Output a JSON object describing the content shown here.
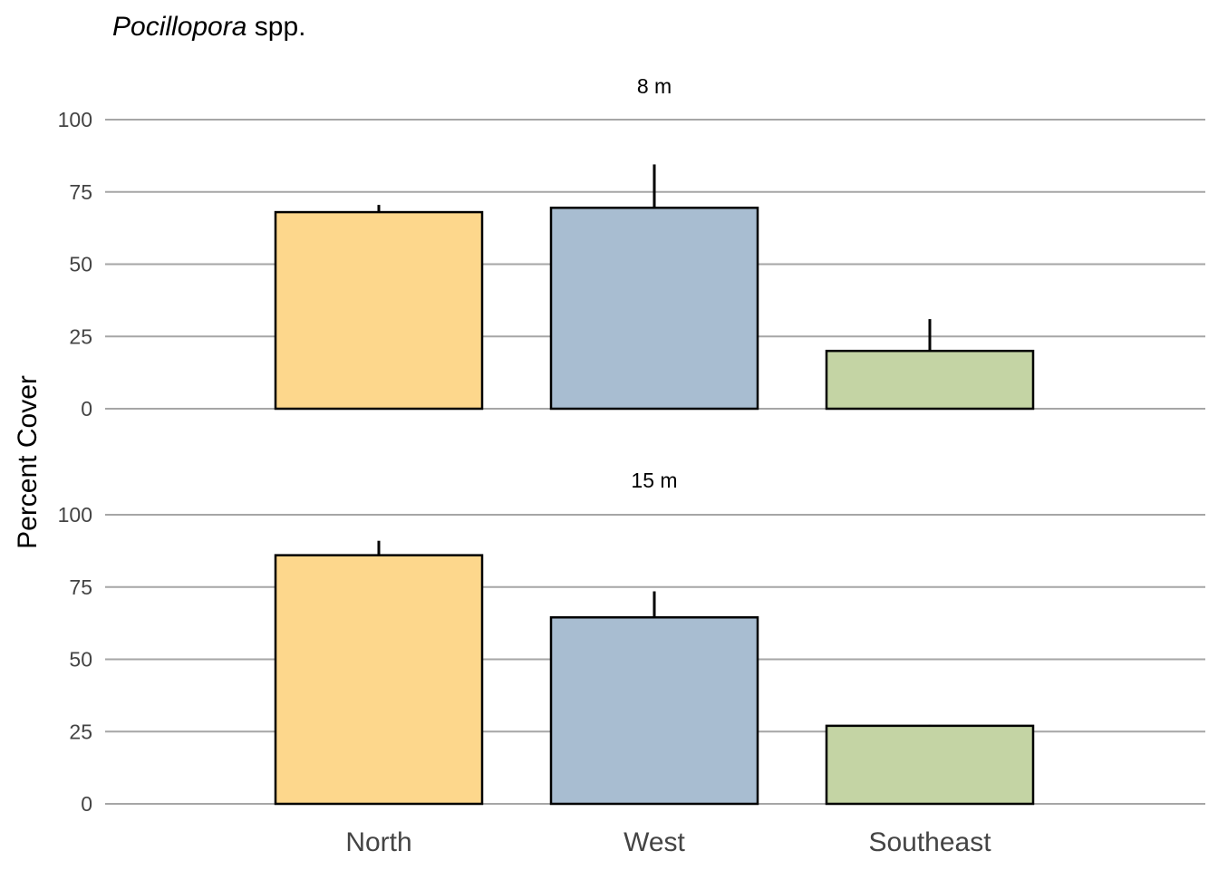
{
  "chart_data": {
    "type": "bar",
    "title_italic": "Pocillopora",
    "title_rest": " spp.",
    "ylabel": "Percent Cover",
    "xlabel": "",
    "categories": [
      "North",
      "West",
      "Southeast"
    ],
    "ylim": [
      0,
      100
    ],
    "yticks": [
      0,
      25,
      50,
      75,
      100
    ],
    "grid": "horizontal",
    "colors": [
      "#FDD78C",
      "#A8BDD1",
      "#C4D4A4"
    ],
    "edge_color": "#000000",
    "grid_color": "#A6A6A6",
    "panels": [
      {
        "label": "8 m",
        "values": [
          68,
          69.5,
          20
        ],
        "error_upper": [
          70.5,
          84.5,
          31
        ],
        "error_lower": [
          null,
          null,
          null
        ]
      },
      {
        "label": "15 m",
        "values": [
          86,
          64.5,
          27
        ],
        "error_upper": [
          91,
          73.5,
          27.3
        ],
        "error_lower": [
          null,
          null,
          null
        ]
      }
    ]
  }
}
